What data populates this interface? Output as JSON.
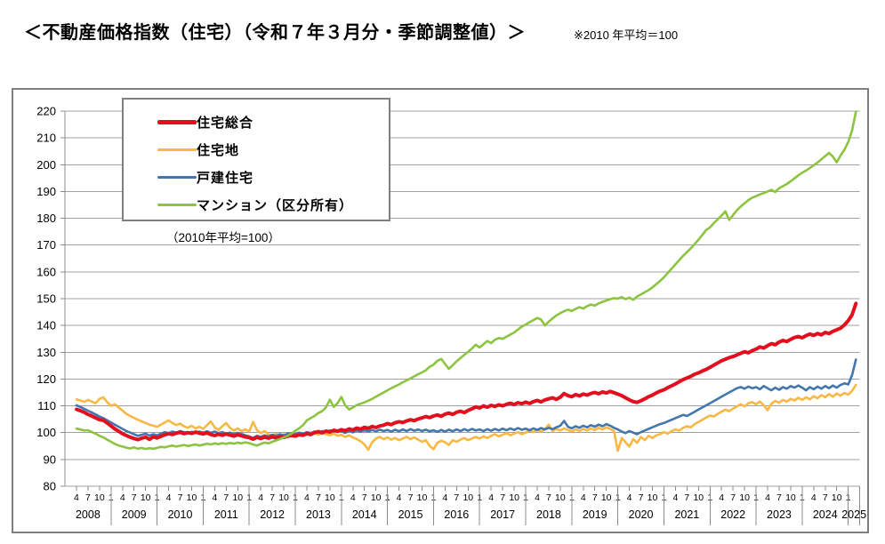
{
  "page": {
    "title": "＜不動産価格指数（住宅）（令和７年３月分・季節調整値）＞",
    "note": "※2010 年平均＝100"
  },
  "chart_data": {
    "type": "line",
    "title": "不動産価格指数（住宅）季節調整値",
    "inner_note": "（2010年平均=100）",
    "x_unit": "month",
    "x_start": "2008-04",
    "x_end": "2025-03",
    "ylim": [
      80,
      220
    ],
    "y_tick_step": 10,
    "y_ticks": [
      220,
      210,
      200,
      190,
      180,
      170,
      160,
      150,
      140,
      130,
      120,
      110,
      100,
      90,
      80
    ],
    "grid": "horizontal-only",
    "legend_position": "top-left-box",
    "years": [
      "2008",
      "2009",
      "2010",
      "2011",
      "2012",
      "2013",
      "2014",
      "2015",
      "2016",
      "2017",
      "2018",
      "2019",
      "2020",
      "2021",
      "2022",
      "2023",
      "2024",
      "2025"
    ],
    "month_tick_pattern": [
      "4",
      "7",
      "10",
      "1"
    ],
    "axis_color": "#8c8c8c",
    "series": [
      {
        "name": "jutaku-sogo",
        "label": "住宅総合",
        "color": "#e2101e",
        "line_width": 4,
        "values": [
          108.7,
          108.2,
          107.6,
          106.8,
          106.2,
          105.5,
          104.8,
          104.6,
          103.6,
          102.5,
          101.4,
          100.5,
          99.6,
          98.9,
          98.3,
          97.8,
          97.4,
          97.9,
          98.3,
          97.5,
          98.4,
          98.0,
          98.6,
          99.2,
          99.6,
          99.3,
          99.8,
          100.1,
          99.6,
          100.0,
          99.7,
          100.2,
          99.8,
          99.5,
          99.9,
          99.3,
          98.9,
          99.4,
          99.0,
          99.5,
          99.1,
          98.7,
          99.2,
          98.8,
          98.4,
          98.1,
          97.6,
          98.2,
          97.8,
          98.3,
          97.9,
          98.4,
          98.0,
          98.5,
          98.2,
          98.7,
          98.9,
          98.7,
          99.2,
          99.0,
          99.6,
          99.3,
          100.0,
          100.4,
          99.9,
          100.6,
          100.2,
          100.9,
          100.5,
          101.1,
          100.7,
          101.4,
          101.0,
          101.7,
          101.3,
          102.0,
          101.6,
          102.3,
          101.9,
          102.5,
          102.8,
          103.4,
          103.0,
          103.7,
          104.1,
          103.8,
          104.4,
          104.8,
          104.5,
          105.1,
          105.5,
          106.0,
          105.6,
          106.2,
          106.6,
          106.1,
          106.9,
          107.3,
          106.8,
          107.6,
          108.0,
          107.5,
          108.3,
          108.9,
          109.6,
          109.2,
          110.0,
          109.5,
          110.2,
          109.8,
          110.4,
          110.0,
          110.6,
          111.0,
          110.5,
          111.2,
          110.8,
          111.4,
          110.9,
          111.6,
          112.0,
          111.5,
          112.2,
          112.6,
          113.0,
          112.4,
          113.2,
          114.6,
          113.8,
          113.4,
          114.2,
          113.7,
          114.4,
          114.0,
          114.6,
          115.0,
          114.5,
          115.2,
          114.8,
          115.4,
          114.9,
          114.4,
          113.8,
          113.0,
          112.2,
          111.6,
          111.3,
          111.9,
          112.6,
          113.4,
          114.0,
          114.8,
          115.5,
          116.0,
          116.8,
          117.5,
          118.2,
          119.0,
          119.8,
          120.4,
          121.0,
          121.8,
          122.3,
          123.0,
          123.6,
          124.4,
          125.2,
          126.0,
          126.8,
          127.4,
          128.0,
          128.4,
          129.0,
          129.6,
          130.2,
          129.8,
          130.6,
          131.2,
          132.0,
          131.6,
          132.5,
          133.2,
          132.8,
          133.8,
          134.4,
          134.0,
          134.8,
          135.5,
          135.9,
          135.4,
          136.2,
          136.8,
          136.3,
          137.0,
          136.5,
          137.4,
          137.0,
          137.8,
          138.4,
          139.0,
          140.2,
          141.8,
          144.0,
          148.2
        ]
      },
      {
        "name": "jutakuchi",
        "label": "住宅地",
        "color": "#f8b843",
        "line_width": 2.6,
        "values": [
          112.4,
          112.0,
          111.5,
          112.2,
          111.6,
          111.0,
          112.6,
          113.2,
          111.4,
          110.0,
          110.6,
          109.4,
          108.2,
          107.0,
          106.2,
          105.5,
          104.8,
          104.2,
          103.6,
          103.0,
          102.6,
          102.2,
          103.0,
          103.8,
          104.6,
          103.6,
          102.8,
          103.4,
          102.4,
          101.8,
          102.6,
          101.6,
          102.2,
          101.4,
          102.8,
          104.2,
          102.0,
          101.0,
          102.4,
          103.6,
          101.8,
          100.8,
          101.6,
          100.6,
          101.2,
          100.4,
          104.0,
          101.0,
          99.8,
          100.6,
          99.4,
          99.0,
          99.6,
          98.8,
          99.4,
          98.6,
          99.2,
          98.6,
          99.4,
          98.8,
          99.6,
          99.0,
          99.8,
          99.2,
          100.0,
          99.4,
          99.0,
          99.6,
          98.8,
          99.2,
          98.4,
          99.0,
          98.2,
          97.6,
          96.8,
          95.6,
          93.6,
          96.4,
          97.8,
          98.4,
          97.6,
          98.2,
          97.4,
          98.0,
          97.2,
          97.8,
          98.4,
          97.6,
          98.2,
          97.4,
          96.6,
          97.2,
          95.0,
          93.8,
          96.2,
          97.0,
          96.4,
          95.4,
          97.2,
          96.6,
          97.4,
          98.0,
          97.2,
          97.8,
          98.4,
          97.8,
          98.6,
          98.0,
          98.8,
          99.4,
          98.6,
          99.2,
          99.8,
          99.0,
          99.6,
          100.2,
          99.4,
          100.0,
          100.8,
          100.2,
          101.0,
          100.4,
          101.2,
          103.0,
          100.6,
          101.4,
          100.8,
          101.6,
          101.0,
          100.4,
          101.2,
          100.6,
          101.4,
          100.8,
          101.6,
          101.0,
          101.8,
          101.2,
          102.0,
          101.4,
          100.6,
          93.2,
          98.0,
          96.4,
          94.8,
          97.6,
          96.2,
          98.4,
          97.2,
          98.8,
          98.0,
          99.0,
          99.4,
          100.2,
          99.6,
          100.6,
          101.2,
          100.8,
          101.8,
          102.4,
          102.0,
          103.2,
          104.0,
          104.8,
          105.6,
          106.4,
          106.0,
          107.0,
          107.8,
          108.6,
          108.0,
          109.0,
          109.8,
          110.6,
          109.8,
          111.0,
          111.4,
          110.6,
          111.6,
          110.2,
          108.4,
          110.8,
          111.8,
          111.2,
          112.2,
          111.6,
          112.6,
          112.0,
          113.0,
          112.2,
          113.2,
          112.4,
          113.6,
          112.8,
          114.0,
          113.2,
          114.4,
          113.4,
          114.6,
          113.8,
          114.8,
          114.2,
          115.6,
          117.8
        ]
      },
      {
        "name": "kodate-jutaku",
        "label": "戸建住宅",
        "color": "#4376ad",
        "line_width": 2.6,
        "values": [
          110.2,
          109.6,
          108.9,
          108.2,
          107.5,
          106.8,
          106.0,
          105.4,
          104.6,
          103.8,
          103.0,
          102.2,
          101.4,
          100.6,
          100.0,
          99.4,
          98.8,
          99.2,
          99.6,
          98.9,
          99.4,
          99.0,
          99.6,
          100.2,
          99.8,
          100.4,
          100.0,
          100.6,
          100.2,
          99.8,
          100.3,
          99.9,
          100.4,
          100.0,
          100.5,
          99.9,
          100.4,
          99.8,
          100.2,
          99.6,
          100.0,
          99.4,
          99.9,
          99.5,
          99.0,
          98.6,
          98.0,
          98.8,
          98.4,
          99.0,
          98.6,
          99.2,
          98.8,
          99.4,
          99.0,
          99.6,
          99.8,
          99.4,
          100.0,
          99.6,
          100.2,
          99.8,
          100.4,
          100.0,
          100.6,
          100.2,
          100.8,
          100.4,
          100.9,
          100.5,
          99.9,
          100.6,
          100.1,
          100.8,
          100.3,
          100.9,
          100.4,
          101.0,
          100.5,
          101.1,
          100.6,
          101.0,
          100.4,
          101.1,
          100.5,
          101.2,
          100.6,
          101.3,
          100.7,
          101.2,
          100.6,
          101.1,
          100.5,
          100.9,
          100.3,
          101.0,
          100.4,
          101.1,
          100.5,
          101.2,
          100.6,
          101.3,
          100.7,
          101.4,
          100.8,
          101.2,
          100.6,
          101.3,
          100.7,
          101.4,
          100.8,
          101.5,
          100.9,
          101.6,
          101.0,
          101.7,
          101.1,
          101.5,
          100.9,
          101.6,
          101.0,
          101.7,
          101.2,
          101.8,
          101.3,
          102.0,
          102.6,
          104.4,
          102.2,
          101.6,
          102.4,
          101.8,
          102.6,
          102.0,
          102.8,
          102.2,
          103.0,
          102.4,
          103.2,
          102.6,
          101.8,
          101.2,
          100.4,
          99.8,
          100.6,
          100.0,
          99.4,
          100.2,
          100.8,
          101.4,
          102.0,
          102.6,
          103.2,
          103.6,
          104.2,
          104.8,
          105.4,
          106.0,
          106.6,
          106.2,
          107.0,
          107.8,
          108.6,
          109.4,
          110.2,
          111.0,
          111.8,
          112.6,
          113.4,
          114.2,
          115.0,
          115.8,
          116.6,
          117.0,
          116.4,
          117.2,
          116.6,
          117.0,
          116.2,
          117.4,
          116.6,
          115.8,
          116.8,
          116.0,
          117.0,
          116.4,
          117.4,
          116.8,
          117.6,
          116.8,
          115.8,
          117.0,
          116.2,
          117.2,
          116.4,
          117.4,
          116.6,
          117.6,
          116.8,
          117.8,
          118.4,
          118.0,
          121.5,
          127.3
        ]
      },
      {
        "name": "mansion",
        "label": "マンション（区分所有）",
        "color": "#8cc440",
        "line_width": 2.6,
        "values": [
          101.5,
          101.2,
          100.8,
          100.9,
          100.2,
          99.6,
          98.8,
          98.2,
          97.4,
          96.6,
          95.8,
          95.2,
          94.8,
          94.4,
          94.1,
          94.5,
          94.0,
          94.3,
          93.9,
          94.2,
          94.0,
          94.3,
          94.7,
          94.5,
          94.9,
          95.2,
          94.8,
          95.1,
          95.4,
          95.0,
          95.3,
          95.6,
          95.2,
          95.5,
          95.9,
          95.6,
          96.0,
          95.7,
          96.1,
          95.8,
          96.2,
          95.9,
          96.3,
          96.0,
          96.4,
          96.1,
          95.6,
          95.2,
          95.8,
          96.3,
          96.0,
          96.6,
          97.1,
          97.6,
          98.2,
          98.8,
          99.6,
          100.7,
          101.6,
          102.8,
          104.6,
          105.4,
          106.2,
          107.3,
          108.0,
          109.5,
          112.3,
          109.6,
          111.0,
          113.3,
          110.2,
          108.6,
          109.4,
          110.3,
          110.8,
          111.3,
          111.9,
          112.6,
          113.4,
          114.2,
          115.0,
          115.8,
          116.6,
          117.3,
          118.0,
          118.8,
          119.5,
          120.2,
          121.0,
          121.8,
          122.5,
          123.3,
          124.6,
          125.4,
          126.8,
          127.5,
          125.6,
          123.8,
          125.2,
          126.6,
          127.8,
          129.0,
          130.2,
          131.4,
          132.8,
          131.8,
          133.0,
          134.2,
          133.4,
          134.7,
          135.3,
          135.0,
          135.8,
          136.6,
          137.4,
          138.5,
          139.6,
          140.3,
          141.2,
          142.0,
          142.8,
          142.2,
          140.0,
          141.4,
          142.6,
          143.8,
          144.6,
          145.3,
          145.9,
          145.4,
          146.2,
          146.8,
          146.3,
          147.2,
          147.8,
          147.4,
          148.2,
          148.8,
          149.3,
          149.8,
          150.2,
          150.0,
          150.6,
          149.8,
          150.4,
          149.6,
          150.8,
          151.6,
          152.4,
          153.2,
          154.2,
          155.4,
          156.6,
          158.0,
          159.6,
          161.2,
          162.8,
          164.4,
          166.0,
          167.4,
          168.8,
          170.4,
          172.0,
          173.8,
          175.6,
          176.6,
          178.2,
          179.6,
          181.0,
          182.6,
          179.4,
          181.2,
          183.0,
          184.4,
          185.6,
          186.8,
          187.7,
          188.3,
          188.9,
          189.4,
          190.0,
          190.6,
          189.8,
          191.2,
          192.0,
          192.8,
          193.8,
          194.9,
          196.0,
          197.0,
          197.8,
          198.8,
          199.8,
          200.8,
          202.0,
          203.2,
          204.4,
          203.0,
          200.9,
          203.4,
          205.6,
          208.5,
          212.8,
          219.8
        ]
      }
    ]
  }
}
